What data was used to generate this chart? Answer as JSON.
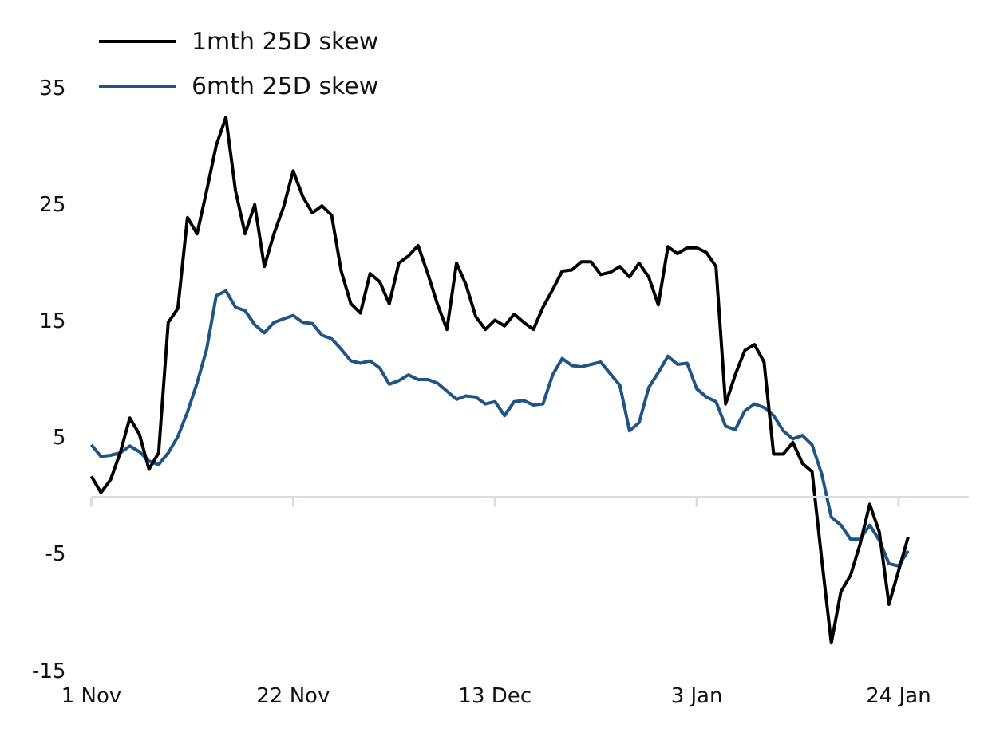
{
  "chart_data": {
    "type": "line",
    "legend": "top left",
    "grid": false,
    "marker": "none",
    "line_style": "solid",
    "categories": [
      "1 Nov",
      null,
      null,
      null,
      null,
      null,
      null,
      null,
      null,
      null,
      null,
      null,
      null,
      null,
      null,
      null,
      null,
      null,
      null,
      null,
      null,
      "22 Nov",
      null,
      null,
      null,
      null,
      null,
      null,
      null,
      null,
      null,
      null,
      null,
      null,
      null,
      null,
      null,
      null,
      null,
      null,
      null,
      null,
      "13 Dec",
      null,
      null,
      null,
      null,
      null,
      null,
      null,
      null,
      null,
      null,
      null,
      null,
      null,
      null,
      null,
      null,
      null,
      null,
      null,
      null,
      "3 Jan",
      null,
      null,
      null,
      null,
      null,
      null,
      null,
      null,
      null,
      null,
      null,
      null,
      null,
      null,
      null,
      null,
      null,
      null,
      null,
      null,
      "24 Jan",
      null
    ],
    "ylim": [
      -15,
      35
    ],
    "yticks": [
      -15,
      -5,
      5,
      15,
      25,
      35
    ],
    "series": [
      {
        "name": "1mth 25D skew",
        "color": "#000000",
        "values": [
          1.8,
          0.4,
          1.5,
          3.8,
          6.8,
          5.4,
          2.4,
          3.8,
          15.0,
          16.2,
          24.0,
          22.6,
          26.3,
          30.2,
          32.6,
          26.3,
          22.6,
          25.1,
          19.8,
          22.6,
          24.9,
          28.0,
          25.8,
          24.4,
          25.0,
          24.2,
          19.4,
          16.6,
          15.8,
          19.2,
          18.5,
          16.6,
          20.1,
          20.7,
          21.6,
          19.2,
          16.6,
          14.4,
          20.1,
          18.2,
          15.5,
          14.4,
          15.2,
          14.7,
          15.7,
          15.0,
          14.4,
          16.3,
          17.8,
          19.4,
          19.5,
          20.2,
          20.2,
          19.1,
          19.3,
          19.8,
          18.9,
          20.1,
          18.9,
          16.5,
          21.5,
          20.9,
          21.4,
          21.4,
          21.0,
          19.8,
          8.0,
          10.5,
          12.6,
          13.1,
          11.6,
          3.7,
          3.7,
          4.7,
          2.9,
          2.2,
          -5.3,
          -12.5,
          -8.1,
          -6.7,
          -4.0,
          -0.6,
          -3.0,
          -9.2,
          -6.3,
          -3.4
        ]
      },
      {
        "name": "6mth 25D skew",
        "color": "#1f5485",
        "values": [
          4.5,
          3.5,
          3.6,
          3.8,
          4.4,
          3.9,
          3.1,
          2.8,
          3.8,
          5.2,
          7.3,
          9.8,
          12.7,
          17.3,
          17.7,
          16.3,
          16.0,
          14.8,
          14.1,
          15.0,
          15.3,
          15.6,
          15.0,
          14.9,
          13.9,
          13.6,
          12.7,
          11.7,
          11.5,
          11.7,
          11.1,
          9.7,
          10.0,
          10.5,
          10.1,
          10.1,
          9.8,
          9.1,
          8.4,
          8.7,
          8.6,
          8.0,
          8.2,
          7.0,
          8.2,
          8.3,
          7.9,
          8.0,
          10.5,
          11.9,
          11.3,
          11.2,
          11.4,
          11.6,
          10.6,
          9.6,
          5.7,
          6.4,
          9.4,
          10.7,
          12.1,
          11.4,
          11.5,
          9.3,
          8.6,
          8.2,
          6.1,
          5.8,
          7.4,
          8.0,
          7.7,
          7.0,
          5.7,
          5.0,
          5.3,
          4.5,
          2.0,
          -1.7,
          -2.4,
          -3.6,
          -3.6,
          -2.4,
          -3.7,
          -5.7,
          -5.9,
          -4.6
        ]
      }
    ]
  }
}
